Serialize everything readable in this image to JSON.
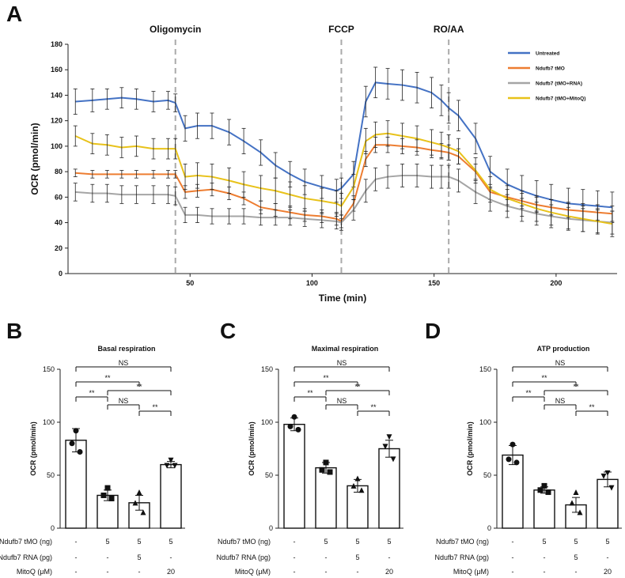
{
  "panels": {
    "a": "A",
    "b": "B",
    "c": "C",
    "d": "D"
  },
  "chart_data": [
    {
      "panel": "A",
      "type": "line",
      "xlabel": "Time (min)",
      "ylabel": "OCR (pmol/min)",
      "xlim": [
        0,
        225
      ],
      "ylim": [
        0,
        180
      ],
      "xticks": [
        50,
        100,
        150,
        200
      ],
      "yticks": [
        0,
        20,
        40,
        60,
        80,
        100,
        120,
        140,
        160,
        180
      ],
      "grid": false,
      "legend_position": "top-right",
      "injections": [
        {
          "label": "Oligomycin",
          "x": 44
        },
        {
          "label": "FCCP",
          "x": 112
        },
        {
          "label": "RO/AA",
          "x": 156
        }
      ],
      "x": [
        3,
        10,
        16,
        22,
        28,
        35,
        41,
        44,
        48,
        53,
        59,
        66,
        72,
        79,
        85,
        91,
        97,
        104,
        110,
        112,
        117,
        122,
        126,
        131,
        137,
        143,
        149,
        153,
        156,
        160,
        167,
        173,
        180,
        186,
        192,
        198,
        205,
        211,
        217,
        223
      ],
      "series": [
        {
          "name": "Untreated",
          "color": "#4472C4",
          "values": [
            135,
            136,
            137,
            138,
            137,
            135,
            136,
            134,
            114,
            116,
            116,
            111,
            104,
            95,
            85,
            78,
            72,
            68,
            65,
            67,
            78,
            135,
            150,
            149,
            148,
            146,
            142,
            136,
            130,
            124,
            106,
            80,
            70,
            65,
            61,
            58,
            55,
            54,
            53,
            52
          ],
          "err": [
            10,
            9,
            8,
            8,
            8,
            8,
            7,
            7,
            10,
            10,
            10,
            10,
            10,
            10,
            10,
            10,
            10,
            9,
            9,
            8,
            10,
            12,
            12,
            12,
            12,
            12,
            12,
            12,
            12,
            12,
            12,
            12,
            12,
            12,
            12,
            12,
            12,
            12,
            12,
            12
          ]
        },
        {
          "name": "Ndufb7 tMO",
          "color": "#ED7D31",
          "values": [
            79,
            78,
            78,
            78,
            78,
            78,
            78,
            78,
            64,
            65,
            66,
            63,
            59,
            52,
            50,
            48,
            46,
            45,
            43,
            41,
            55,
            90,
            101,
            101,
            100,
            99,
            97,
            96,
            95,
            92,
            80,
            64,
            60,
            57,
            54,
            52,
            50,
            49,
            48,
            47
          ],
          "err": [
            3,
            3,
            3,
            3,
            3,
            3,
            3,
            3,
            5,
            5,
            5,
            5,
            5,
            5,
            5,
            5,
            5,
            5,
            5,
            5,
            6,
            6,
            6,
            6,
            6,
            6,
            6,
            6,
            6,
            6,
            6,
            6,
            6,
            6,
            6,
            6,
            6,
            6,
            6,
            6
          ]
        },
        {
          "name": "Ndufb7 (tMO+RNA)",
          "color": "#A5A5A5",
          "values": [
            64,
            63,
            63,
            62,
            62,
            62,
            62,
            61,
            46,
            46,
            45,
            45,
            45,
            44,
            44,
            44,
            43,
            42,
            41,
            40,
            50,
            65,
            74,
            76,
            77,
            77,
            76,
            76,
            76,
            73,
            64,
            58,
            53,
            50,
            47,
            45,
            43,
            42,
            41,
            40
          ],
          "err": [
            7,
            7,
            7,
            7,
            7,
            7,
            7,
            7,
            6,
            6,
            6,
            6,
            6,
            6,
            6,
            6,
            6,
            6,
            6,
            6,
            8,
            9,
            9,
            9,
            9,
            9,
            9,
            9,
            9,
            9,
            9,
            9,
            9,
            9,
            9,
            9,
            9,
            9,
            9,
            9
          ]
        },
        {
          "name": "Ndufb7 (tMO+MitoQ)",
          "color": "#E8C21A",
          "values": [
            108,
            102,
            101,
            99,
            100,
            98,
            98,
            98,
            76,
            77,
            76,
            73,
            70,
            67,
            65,
            62,
            59,
            57,
            55,
            53,
            68,
            104,
            109,
            110,
            108,
            106,
            103,
            101,
            99,
            96,
            81,
            66,
            59,
            55,
            51,
            48,
            45,
            43,
            41,
            39
          ],
          "err": [
            8,
            8,
            8,
            8,
            8,
            8,
            8,
            8,
            10,
            10,
            10,
            10,
            10,
            10,
            10,
            10,
            10,
            10,
            10,
            10,
            10,
            10,
            10,
            10,
            10,
            10,
            10,
            10,
            10,
            10,
            10,
            10,
            10,
            10,
            10,
            10,
            10,
            10,
            10,
            10
          ]
        }
      ]
    },
    {
      "panel": "B",
      "type": "bar",
      "title": "Basal respiration",
      "ylabel": "OCR (pmol/min)",
      "ylim": [
        0,
        150
      ],
      "yticks": [
        0,
        50,
        100,
        150
      ],
      "values": [
        83,
        31,
        24,
        60
      ],
      "sem": [
        11,
        5,
        7,
        3
      ],
      "points": [
        [
          92,
          80,
          72
        ],
        [
          38,
          31,
          28
        ],
        [
          34,
          24,
          15
        ],
        [
          64,
          59,
          59
        ]
      ],
      "markers": [
        "circle",
        "square",
        "triangle-up",
        "triangle-down"
      ],
      "rows": [
        {
          "label": "Ndufb7 tMO (ng)",
          "values": [
            "-",
            "5",
            "5",
            "5"
          ]
        },
        {
          "label": "Ndufb7 RNA (pg)",
          "values": [
            "-",
            "-",
            "5",
            "-"
          ]
        },
        {
          "label": "MitoQ (μM)",
          "values": [
            "-",
            "-",
            "-",
            "20"
          ]
        }
      ],
      "sig": [
        {
          "a": 0,
          "b": 3,
          "label": "NS"
        },
        {
          "a": 0,
          "b": 2,
          "label": "**"
        },
        {
          "a": 1,
          "b": 3,
          "label": "**"
        },
        {
          "a": 0,
          "b": 1,
          "label": "**"
        },
        {
          "a": 1,
          "b": 2,
          "label": "NS"
        },
        {
          "a": 2,
          "b": 3,
          "label": "**"
        }
      ]
    },
    {
      "panel": "C",
      "type": "bar",
      "title": "Maximal respiration",
      "ylabel": "OCR (pmol/min)",
      "ylim": [
        0,
        150
      ],
      "yticks": [
        0,
        50,
        100,
        150
      ],
      "values": [
        98,
        57,
        40,
        75
      ],
      "sem": [
        6,
        5,
        6,
        8
      ],
      "points": [
        [
          105,
          96,
          93
        ],
        [
          62,
          55,
          53
        ],
        [
          47,
          40,
          36
        ],
        [
          86,
          77,
          65
        ]
      ],
      "markers": [
        "circle",
        "square",
        "triangle-up",
        "triangle-down"
      ],
      "rows": [
        {
          "label": "Ndufb7 tMO (ng)",
          "values": [
            "-",
            "5",
            "5",
            "5"
          ]
        },
        {
          "label": "Ndufb7 RNA (pg)",
          "values": [
            "-",
            "-",
            "5",
            "-"
          ]
        },
        {
          "label": "MitoQ (μM)",
          "values": [
            "-",
            "-",
            "-",
            "20"
          ]
        }
      ],
      "sig": [
        {
          "a": 0,
          "b": 3,
          "label": "NS"
        },
        {
          "a": 0,
          "b": 2,
          "label": "**"
        },
        {
          "a": 1,
          "b": 3,
          "label": "**"
        },
        {
          "a": 0,
          "b": 1,
          "label": "**"
        },
        {
          "a": 1,
          "b": 2,
          "label": "NS"
        },
        {
          "a": 2,
          "b": 3,
          "label": "**"
        }
      ]
    },
    {
      "panel": "D",
      "type": "bar",
      "title": "ATP production",
      "ylabel": "OCR (pmol/min)",
      "ylim": [
        0,
        150
      ],
      "yticks": [
        0,
        50,
        100,
        150
      ],
      "values": [
        69,
        36,
        22,
        46
      ],
      "sem": [
        9,
        3,
        7,
        7
      ],
      "points": [
        [
          79,
          65,
          62
        ],
        [
          40,
          36,
          34
        ],
        [
          34,
          24,
          15
        ],
        [
          52,
          49,
          38
        ]
      ],
      "markers": [
        "circle",
        "square",
        "triangle-up",
        "triangle-down"
      ],
      "rows": [
        {
          "label": "Ndufb7 tMO (ng)",
          "values": [
            "-",
            "5",
            "5",
            "5"
          ]
        },
        {
          "label": "Ndufb7 RNA (pg)",
          "values": [
            "-",
            "-",
            "5",
            "-"
          ]
        },
        {
          "label": "MitoQ (μM)",
          "values": [
            "-",
            "-",
            "-",
            "20"
          ]
        }
      ],
      "sig": [
        {
          "a": 0,
          "b": 3,
          "label": "NS"
        },
        {
          "a": 0,
          "b": 2,
          "label": "**"
        },
        {
          "a": 1,
          "b": 3,
          "label": "**"
        },
        {
          "a": 0,
          "b": 1,
          "label": "**"
        },
        {
          "a": 1,
          "b": 2,
          "label": "NS"
        },
        {
          "a": 2,
          "b": 3,
          "label": "**"
        }
      ]
    }
  ]
}
